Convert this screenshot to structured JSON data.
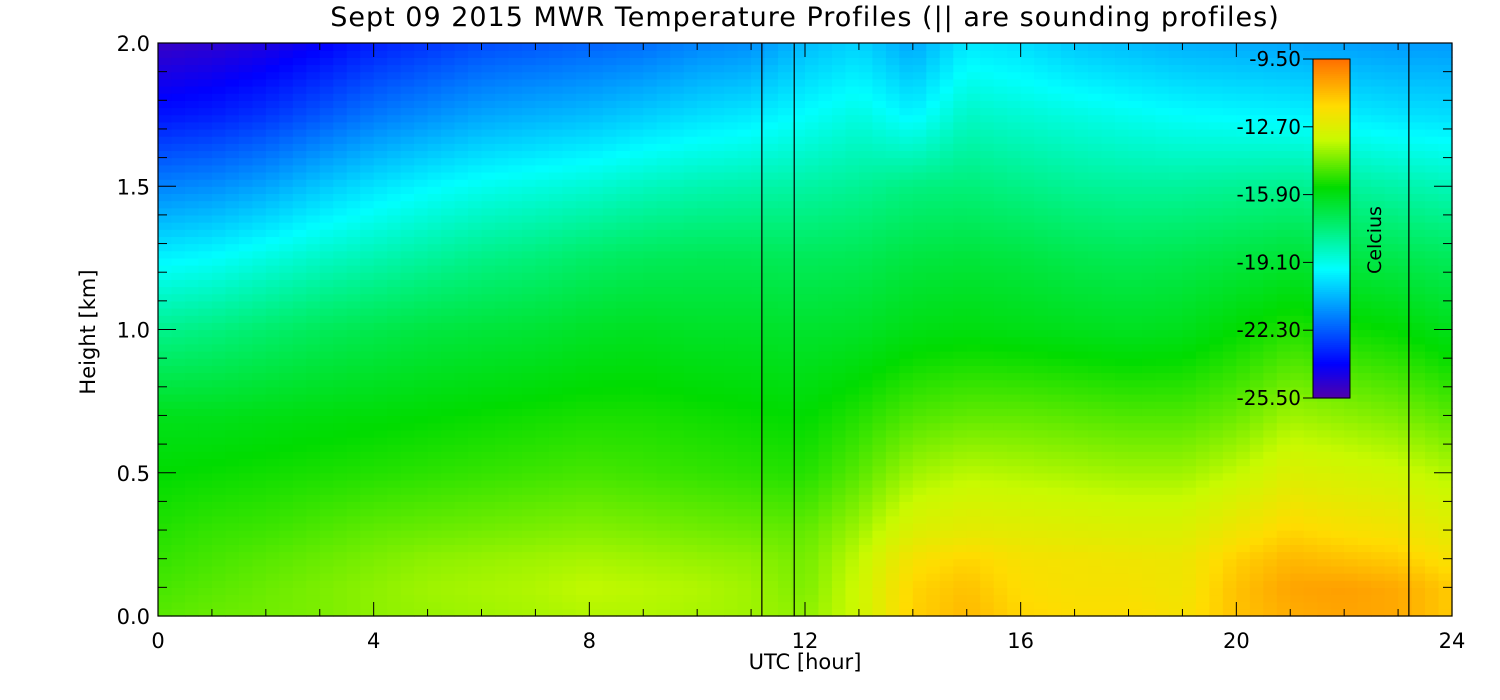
{
  "chart_data": {
    "type": "heatmap",
    "title": "Sept 09 2015 MWR Temperature Profiles (|| are sounding profiles)",
    "xlabel": "UTC [hour]",
    "ylabel": "Height [km]",
    "xlim": [
      0,
      24
    ],
    "ylim": [
      0,
      2.0
    ],
    "x_ticks": [
      "0",
      "4",
      "8",
      "12",
      "16",
      "20",
      "24"
    ],
    "y_ticks": [
      "0.0",
      "0.5",
      "1.0",
      "1.5",
      "2.0"
    ],
    "x_tick_values": [
      0,
      4,
      8,
      12,
      16,
      20,
      24
    ],
    "y_tick_values": [
      0,
      0.5,
      1.0,
      1.5,
      2.0
    ],
    "colorbar": {
      "label": "Celcius",
      "min": -25.5,
      "max": -9.5,
      "ticks": [
        "-9.50",
        "-12.70",
        "-15.90",
        "-19.10",
        "-22.30",
        "-25.50"
      ],
      "tick_values": [
        -9.5,
        -12.7,
        -15.9,
        -19.1,
        -22.3,
        -25.5
      ]
    },
    "sounding_times_utc": [
      11.2,
      11.8,
      23.2
    ],
    "grid_hours": [
      0,
      1,
      2,
      3,
      4,
      5,
      6,
      7,
      8,
      9,
      10,
      11,
      12,
      13,
      14,
      15,
      16,
      17,
      18,
      19,
      20,
      21,
      22,
      23,
      24
    ],
    "grid_heights_km": [
      0,
      0.1,
      0.2,
      0.3,
      0.5,
      0.7,
      1.0,
      1.25,
      1.5,
      1.75,
      2.0
    ],
    "temperature_c": [
      [
        -14.6,
        -14.4,
        -14.3,
        -14.2,
        -14.0,
        -13.9,
        -13.8,
        -13.7,
        -13.6,
        -13.6,
        -13.7,
        -13.8,
        -14.0,
        -13.2,
        -11.5,
        -11.0,
        -11.6,
        -11.8,
        -11.8,
        -12.0,
        -11.2,
        -10.8,
        -10.6,
        -10.7,
        -11.4
      ],
      [
        -14.8,
        -14.6,
        -14.4,
        -14.2,
        -14.0,
        -13.8,
        -13.7,
        -13.6,
        -13.4,
        -13.5,
        -13.6,
        -13.8,
        -14.2,
        -13.2,
        -11.6,
        -11.2,
        -11.8,
        -12.0,
        -12.0,
        -12.2,
        -11.2,
        -10.6,
        -10.5,
        -10.7,
        -11.4
      ],
      [
        -15.0,
        -14.8,
        -14.6,
        -14.4,
        -14.2,
        -14.0,
        -13.9,
        -13.8,
        -13.7,
        -13.8,
        -13.9,
        -14.0,
        -14.3,
        -13.4,
        -12.0,
        -11.6,
        -12.0,
        -12.1,
        -12.2,
        -12.3,
        -11.5,
        -11.0,
        -11.2,
        -11.4,
        -12.0
      ],
      [
        -15.2,
        -15.0,
        -14.9,
        -14.7,
        -14.5,
        -14.4,
        -14.3,
        -14.2,
        -14.1,
        -14.2,
        -14.3,
        -14.4,
        -14.5,
        -13.8,
        -12.8,
        -12.5,
        -12.6,
        -12.7,
        -12.8,
        -12.8,
        -12.2,
        -11.6,
        -11.9,
        -12.1,
        -12.6
      ],
      [
        -15.6,
        -15.5,
        -15.4,
        -15.3,
        -15.2,
        -15.1,
        -15.0,
        -14.9,
        -14.8,
        -14.9,
        -15.0,
        -15.1,
        -15.2,
        -14.6,
        -13.8,
        -13.5,
        -13.6,
        -13.7,
        -13.8,
        -13.8,
        -13.4,
        -12.8,
        -13.0,
        -13.2,
        -13.6
      ],
      [
        -16.0,
        -16.0,
        -15.9,
        -15.8,
        -15.7,
        -15.6,
        -15.5,
        -15.4,
        -15.3,
        -15.3,
        -15.4,
        -15.5,
        -15.6,
        -15.2,
        -14.7,
        -14.5,
        -14.5,
        -14.6,
        -14.7,
        -14.7,
        -14.4,
        -13.8,
        -14.0,
        -14.2,
        -14.6
      ],
      [
        -17.8,
        -17.6,
        -17.3,
        -17.0,
        -16.8,
        -16.6,
        -16.5,
        -16.4,
        -16.2,
        -16.1,
        -16.2,
        -16.2,
        -16.3,
        -16.2,
        -15.9,
        -15.8,
        -15.9,
        -16.0,
        -16.1,
        -16.0,
        -15.6,
        -15.2,
        -15.4,
        -15.6,
        -16.0
      ],
      [
        -19.6,
        -19.4,
        -19.0,
        -18.6,
        -18.3,
        -18.0,
        -17.7,
        -17.5,
        -17.2,
        -17.0,
        -16.9,
        -16.9,
        -17.0,
        -16.9,
        -16.6,
        -16.5,
        -16.6,
        -16.8,
        -16.9,
        -16.8,
        -16.6,
        -16.4,
        -16.6,
        -16.8,
        -17.0
      ],
      [
        -21.6,
        -21.4,
        -21.0,
        -20.4,
        -19.9,
        -19.5,
        -19.2,
        -19.0,
        -18.8,
        -18.5,
        -18.3,
        -18.2,
        -18.1,
        -17.9,
        -17.6,
        -17.5,
        -17.7,
        -17.9,
        -18.0,
        -18.0,
        -17.9,
        -17.8,
        -18.0,
        -18.2,
        -18.4
      ],
      [
        -23.6,
        -23.4,
        -23.0,
        -22.4,
        -21.8,
        -21.4,
        -21.0,
        -20.8,
        -20.6,
        -20.3,
        -20.0,
        -19.8,
        -19.4,
        -19.0,
        -19.6,
        -18.6,
        -18.8,
        -19.0,
        -19.2,
        -19.4,
        -19.5,
        -19.6,
        -19.7,
        -19.9,
        -20.0
      ],
      [
        -25.0,
        -24.8,
        -24.5,
        -24.0,
        -23.4,
        -23.0,
        -22.6,
        -22.4,
        -22.2,
        -22.0,
        -21.6,
        -21.4,
        -20.6,
        -20.2,
        -21.0,
        -19.8,
        -20.0,
        -20.4,
        -20.6,
        -20.8,
        -20.9,
        -21.0,
        -21.1,
        -21.2,
        -21.2
      ]
    ]
  }
}
